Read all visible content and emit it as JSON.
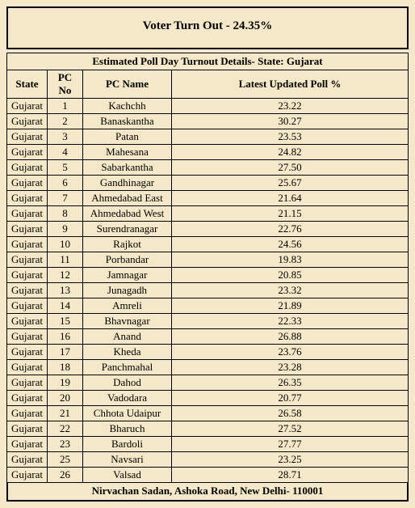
{
  "header": {
    "title": "Voter Turn Out - 24.35%"
  },
  "table": {
    "caption": "Estimated Poll Day Turnout Details- State: Gujarat",
    "columns": [
      "State",
      "PC No",
      "PC Name",
      "Latest Updated Poll %"
    ],
    "rows": [
      [
        "Gujarat",
        "1",
        "Kachchh",
        "23.22"
      ],
      [
        "Gujarat",
        "2",
        "Banaskantha",
        "30.27"
      ],
      [
        "Gujarat",
        "3",
        "Patan",
        "23.53"
      ],
      [
        "Gujarat",
        "4",
        "Mahesana",
        "24.82"
      ],
      [
        "Gujarat",
        "5",
        "Sabarkantha",
        "27.50"
      ],
      [
        "Gujarat",
        "6",
        "Gandhinagar",
        "25.67"
      ],
      [
        "Gujarat",
        "7",
        "Ahmedabad East",
        "21.64"
      ],
      [
        "Gujarat",
        "8",
        "Ahmedabad West",
        "21.15"
      ],
      [
        "Gujarat",
        "9",
        "Surendranagar",
        "22.76"
      ],
      [
        "Gujarat",
        "10",
        "Rajkot",
        "24.56"
      ],
      [
        "Gujarat",
        "11",
        "Porbandar",
        "19.83"
      ],
      [
        "Gujarat",
        "12",
        "Jamnagar",
        "20.85"
      ],
      [
        "Gujarat",
        "13",
        "Junagadh",
        "23.32"
      ],
      [
        "Gujarat",
        "14",
        "Amreli",
        "21.89"
      ],
      [
        "Gujarat",
        "15",
        "Bhavnagar",
        "22.33"
      ],
      [
        "Gujarat",
        "16",
        "Anand",
        "26.88"
      ],
      [
        "Gujarat",
        "17",
        "Kheda",
        "23.76"
      ],
      [
        "Gujarat",
        "18",
        "Panchmahal",
        "23.28"
      ],
      [
        "Gujarat",
        "19",
        "Dahod",
        "26.35"
      ],
      [
        "Gujarat",
        "20",
        "Vadodara",
        "20.77"
      ],
      [
        "Gujarat",
        "21",
        "Chhota Udaipur",
        "26.58"
      ],
      [
        "Gujarat",
        "22",
        "Bharuch",
        "27.52"
      ],
      [
        "Gujarat",
        "23",
        "Bardoli",
        "27.77"
      ],
      [
        "Gujarat",
        "25",
        "Navsari",
        "23.25"
      ],
      [
        "Gujarat",
        "26",
        "Valsad",
        "28.71"
      ]
    ]
  },
  "footer": {
    "text": "Nirvachan Sadan, Ashoka Road, New Delhi- 110001"
  }
}
